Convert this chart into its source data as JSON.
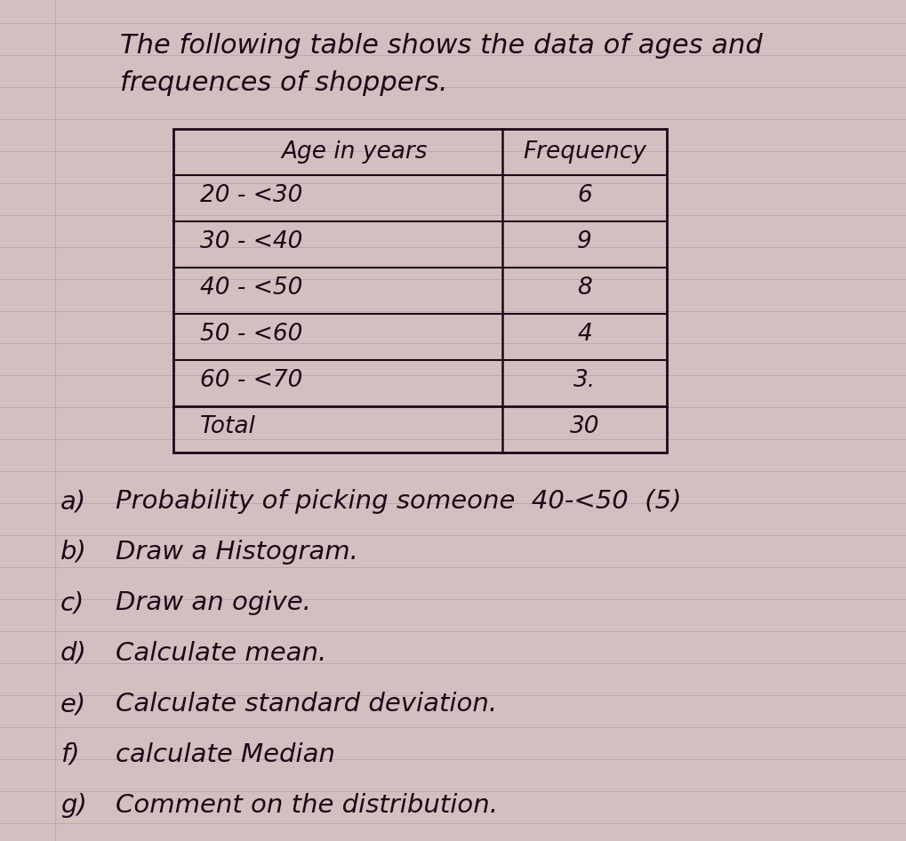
{
  "bg_color": "#d4bfc0",
  "line_color": "#a898b0",
  "ink_color": "#1a0a18",
  "title_line1": "The following table shows the data of ages and",
  "title_line2": "frequences of shoppers.",
  "col1_header": "Age in years",
  "col2_header": "Frequency",
  "age_rows": [
    "20 - <30",
    "30 - <40",
    "40 - <50",
    "50 - <60",
    "60 - <70",
    "Total"
  ],
  "freq_rows": [
    "6",
    "9",
    "8",
    "4",
    "3.",
    "30"
  ],
  "q_labels": [
    "a)",
    "b)",
    "c)",
    "d)",
    "e)",
    "f)",
    "g)"
  ],
  "q_texts": [
    "Probability of picking someone  40-<50  (5)",
    "Draw a Histogram.",
    "Draw an ogive.",
    "Calculate mean.",
    "Calculate standard deviation.",
    "calculate Median",
    "Comment on the distribution."
  ],
  "figw": 10.19,
  "figh": 9.46,
  "dpi": 100
}
